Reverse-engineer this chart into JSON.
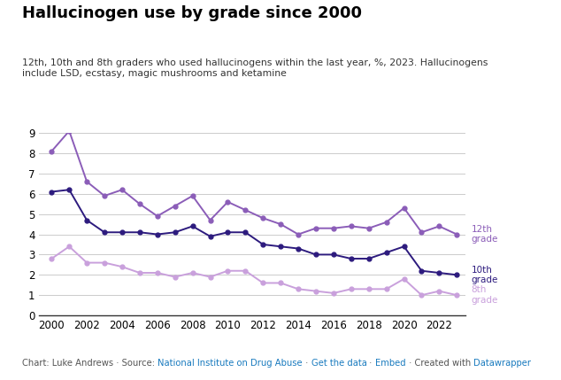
{
  "title": "Hallucinogen use by grade since 2000",
  "subtitle": "12th, 10th and 8th graders who used hallucinogens within the last year, %, 2023. Hallucinogens\ninclude LSD, ecstasy, magic mushrooms and ketamine",
  "years": [
    2000,
    2001,
    2002,
    2003,
    2004,
    2005,
    2006,
    2007,
    2008,
    2009,
    2010,
    2011,
    2012,
    2013,
    2014,
    2015,
    2016,
    2017,
    2018,
    2019,
    2020,
    2021,
    2022,
    2023
  ],
  "grade12": [
    8.1,
    9.1,
    6.6,
    5.9,
    6.2,
    5.5,
    4.9,
    5.4,
    5.9,
    4.7,
    5.6,
    5.2,
    4.8,
    4.5,
    4.0,
    4.3,
    4.3,
    4.4,
    4.3,
    4.6,
    5.3,
    4.1,
    4.4,
    4.0
  ],
  "grade10": [
    6.1,
    6.2,
    4.7,
    4.1,
    4.1,
    4.1,
    4.0,
    4.1,
    4.4,
    3.9,
    4.1,
    4.1,
    3.5,
    3.4,
    3.3,
    3.0,
    3.0,
    2.8,
    2.8,
    3.1,
    3.4,
    2.2,
    2.1,
    2.0
  ],
  "grade8": [
    2.8,
    3.4,
    2.6,
    2.6,
    2.4,
    2.1,
    2.1,
    1.9,
    2.1,
    1.9,
    2.2,
    2.2,
    1.6,
    1.6,
    1.3,
    1.2,
    1.1,
    1.3,
    1.3,
    1.3,
    1.8,
    1.0,
    1.2,
    1.0
  ],
  "color12": "#8B5DB8",
  "color10": "#2D1B7E",
  "color8": "#C9A0DC",
  "bg_color": "#ffffff",
  "grid_color": "#cccccc",
  "ylim": [
    0,
    9
  ],
  "yticks": [
    0,
    1,
    2,
    3,
    4,
    5,
    6,
    7,
    8,
    9
  ],
  "xticks": [
    2000,
    2002,
    2004,
    2006,
    2008,
    2010,
    2012,
    2014,
    2016,
    2018,
    2020,
    2022
  ],
  "footer_plain1": "Chart: Luke Andrews · Source: ",
  "footer_link1": "National Institute on Drug Abuse",
  "footer_plain2": " · ",
  "footer_link2": "Get the data",
  "footer_plain3": " · ",
  "footer_link3": "Embed",
  "footer_plain4": " · Created with ",
  "footer_link4": "Datawrapper",
  "link_color": "#1a7bbf",
  "plain_color": "#555555"
}
